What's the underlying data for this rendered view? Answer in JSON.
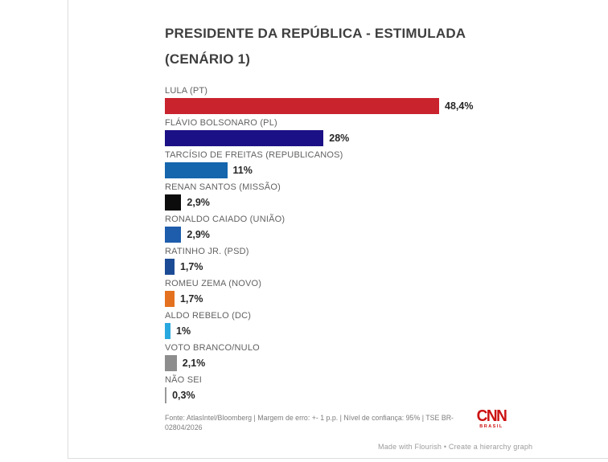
{
  "page": {
    "title_line1": "PRESIDENTE DA REPÚBLICA - ESTIMULADA",
    "title_line2": "(CENÁRIO 1)",
    "footer": "Fonte: AtlasIntel/Bloomberg | Margem de erro: +- 1 p.p. | Nível de confiança: 95% | TSE BR-02804/2026",
    "credit": "Made with Flourish • Create a hierarchy graph",
    "logo": {
      "text": "CNN",
      "subtext": "BRASIL",
      "color": "#cc1111"
    }
  },
  "chart_data": {
    "type": "bar",
    "orientation": "horizontal",
    "title": "PRESIDENTE DA REPÚBLICA - ESTIMULADA (CENÁRIO 1)",
    "unit": "%",
    "xlim": [
      0,
      50
    ],
    "grid": false,
    "legend": "none",
    "categories": [
      "LULA (PT)",
      "FLÁVIO BOLSONARO (PL)",
      "TARCÍSIO DE FREITAS (REPUBLICANOS)",
      "RENAN SANTOS (MISSÃO)",
      "RONALDO CAIADO (UNIÃO)",
      "RATINHO JR. (PSD)",
      "ROMEU ZEMA (NOVO)",
      "ALDO REBELO (DC)",
      "VOTO BRANCO/NULO",
      "NÃO SEI"
    ],
    "values": [
      48.4,
      28,
      11,
      2.9,
      2.9,
      1.7,
      1.7,
      1,
      2.1,
      0.3
    ],
    "value_labels": [
      "48,4%",
      "28%",
      "11%",
      "2,9%",
      "2,9%",
      "1,7%",
      "1,7%",
      "1%",
      "2,1%",
      "0,3%"
    ],
    "colors": [
      "#c9232e",
      "#1c1086",
      "#1566ad",
      "#0c0c0c",
      "#1e5cac",
      "#1c4b95",
      "#e4711f",
      "#29a8df",
      "#8d8d8d",
      "#999999"
    ]
  }
}
